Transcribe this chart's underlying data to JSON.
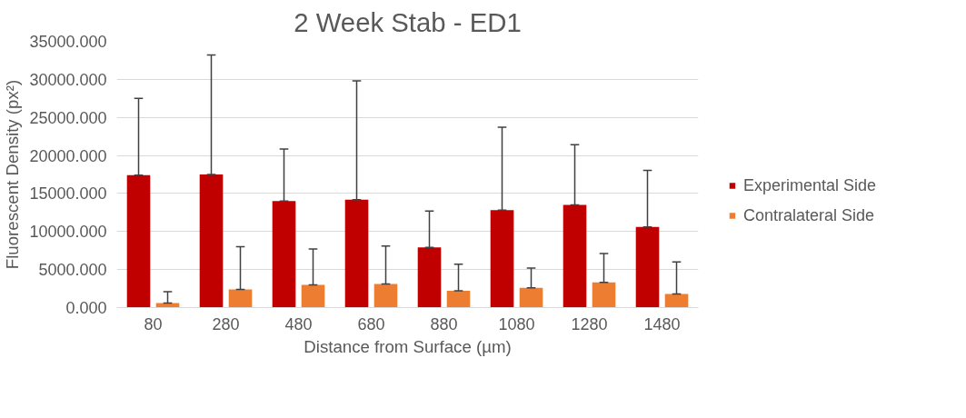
{
  "chart_data": {
    "type": "bar",
    "title": "2 Week Stab - ED1",
    "xlabel": "Distance from Surface (µm)",
    "ylabel": "Fluorescent Density (px²)",
    "categories": [
      "80",
      "280",
      "480",
      "680",
      "880",
      "1080",
      "1280",
      "1480"
    ],
    "series": [
      {
        "name": "Experimental Side",
        "color": "#c00000",
        "values": [
          17400,
          17500,
          14000,
          14200,
          7900,
          12800,
          13500,
          10600
        ],
        "errors": [
          [
            17400,
            27500
          ],
          [
            17500,
            33200
          ],
          [
            14000,
            20850
          ],
          [
            14200,
            29800
          ],
          [
            7900,
            12700
          ],
          [
            12800,
            23700
          ],
          [
            13500,
            21400
          ],
          [
            10600,
            18050
          ]
        ]
      },
      {
        "name": "Contralateral Side",
        "color": "#ed7d31",
        "values": [
          600,
          2400,
          3000,
          3100,
          2200,
          2600,
          3300,
          1800
        ],
        "errors": [
          [
            600,
            2100
          ],
          [
            2400,
            8000
          ],
          [
            3000,
            7700
          ],
          [
            3100,
            8100
          ],
          [
            2200,
            5700
          ],
          [
            2600,
            5200
          ],
          [
            3300,
            7100
          ],
          [
            1800,
            6000
          ]
        ]
      }
    ],
    "ylim": [
      0,
      35000
    ],
    "yticks": [
      {
        "value": 0,
        "label": "0.000"
      },
      {
        "value": 5000,
        "label": "5000.000"
      },
      {
        "value": 10000,
        "label": "10000.000"
      },
      {
        "value": 15000,
        "label": "15000.000"
      },
      {
        "value": 20000,
        "label": "20000.000"
      },
      {
        "value": 25000,
        "label": "25000.000"
      },
      {
        "value": 30000,
        "label": "30000.000"
      },
      {
        "value": 35000,
        "label": "35000.000"
      }
    ],
    "grid": "y",
    "legend": "right"
  }
}
